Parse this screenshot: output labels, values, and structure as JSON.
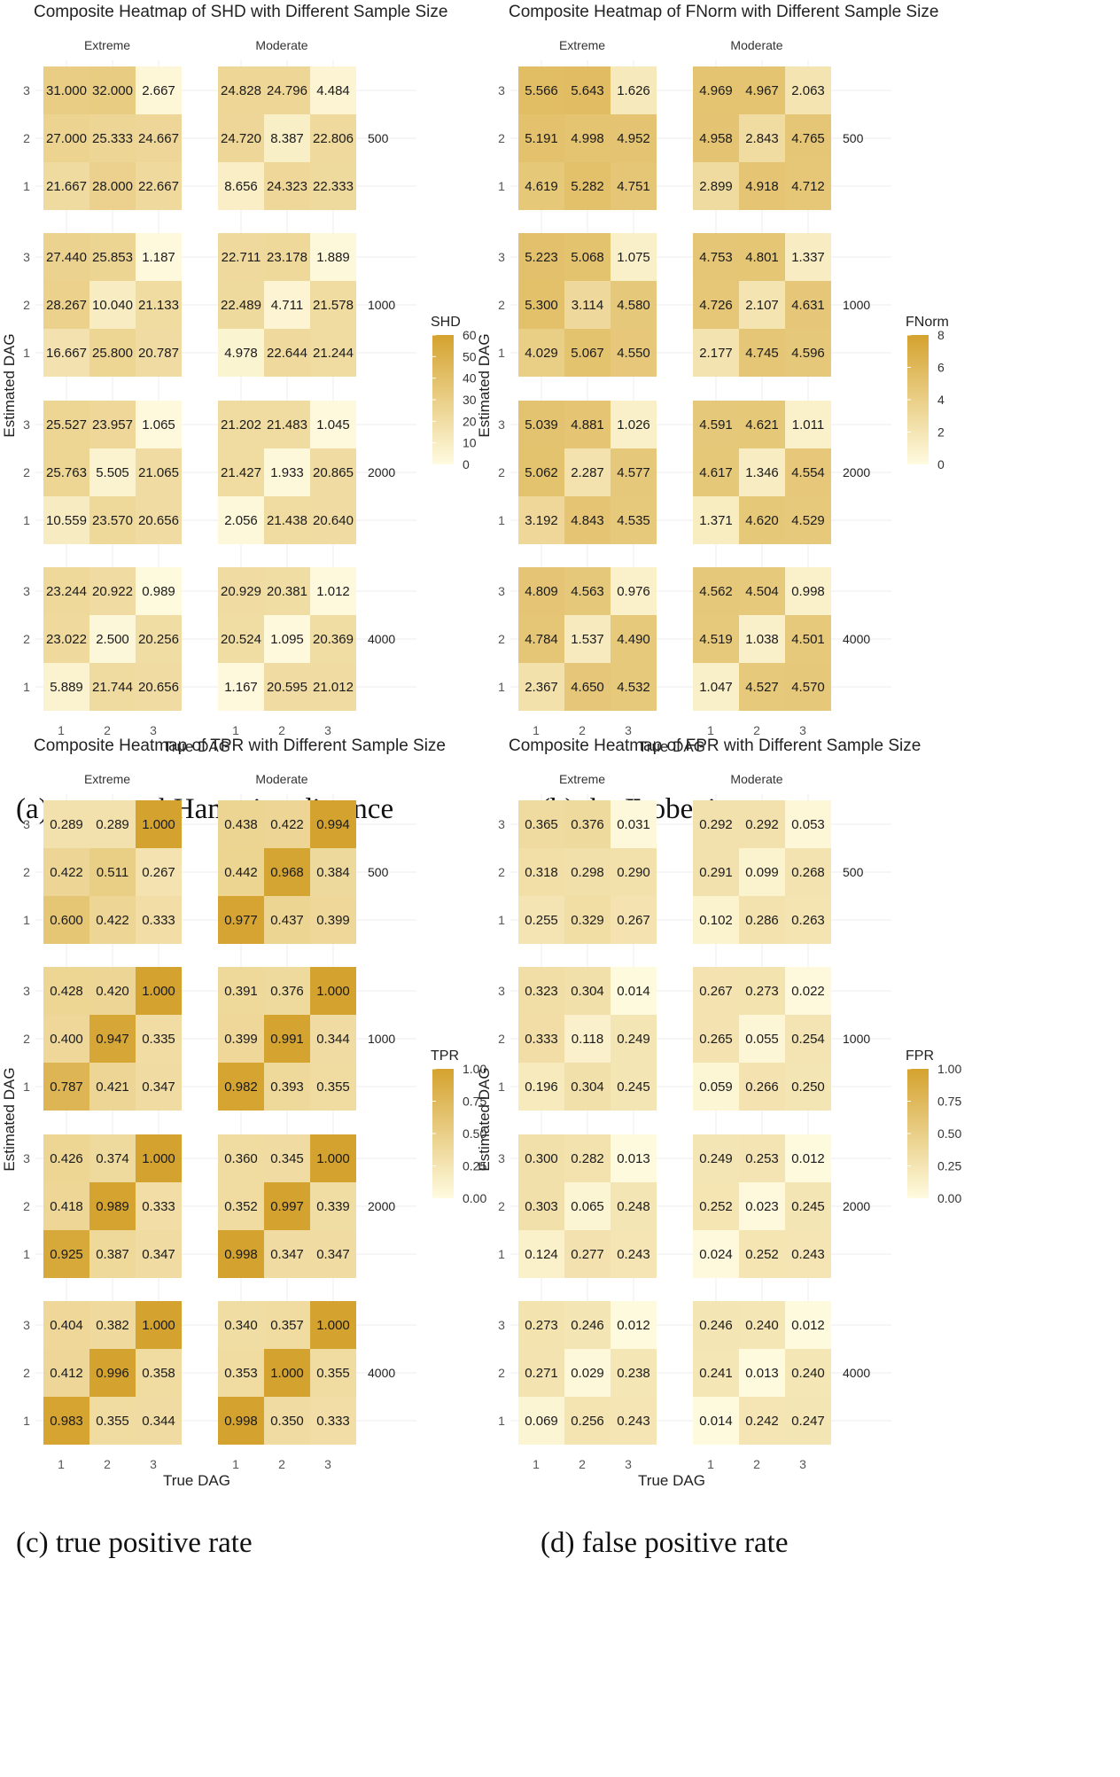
{
  "colors": {
    "low": "#fffbe0",
    "high": "#d4a22e",
    "cell_text": "#1a1a1a",
    "grid": "#ececec"
  },
  "chart_data": [
    {
      "type": "heatmap",
      "title": "Composite Heatmap of SHD with Different Sample Size",
      "xlabel": "True DAG",
      "ylabel": "Estimated DAG",
      "facet_columns": [
        "Extreme",
        "Moderate"
      ],
      "facet_rows": [
        "500",
        "1000",
        "2000",
        "4000"
      ],
      "x_categories": [
        "1",
        "2",
        "3"
      ],
      "y_categories": [
        "1",
        "2",
        "3"
      ],
      "legend": {
        "title": "SHD",
        "limits": [
          0,
          60
        ],
        "ticks": [
          "60",
          "50",
          "40",
          "30",
          "20",
          "10",
          "0"
        ]
      },
      "caption": "(a) structural Hamming distance",
      "values": {
        "500": {
          "Extreme": [
            [
              "31.000",
              "32.000",
              "2.667"
            ],
            [
              "27.000",
              "25.333",
              "24.667"
            ],
            [
              "21.667",
              "28.000",
              "22.667"
            ]
          ],
          "Moderate": [
            [
              "24.828",
              "24.796",
              "4.484"
            ],
            [
              "24.720",
              "8.387",
              "22.806"
            ],
            [
              "8.656",
              "24.323",
              "22.333"
            ]
          ]
        },
        "1000": {
          "Extreme": [
            [
              "27.440",
              "25.853",
              "1.187"
            ],
            [
              "28.267",
              "10.040",
              "21.133"
            ],
            [
              "16.667",
              "25.800",
              "20.787"
            ]
          ],
          "Moderate": [
            [
              "22.711",
              "23.178",
              "1.889"
            ],
            [
              "22.489",
              "4.711",
              "21.578"
            ],
            [
              "4.978",
              "22.644",
              "21.244"
            ]
          ]
        },
        "2000": {
          "Extreme": [
            [
              "25.527",
              "23.957",
              "1.065"
            ],
            [
              "25.763",
              "5.505",
              "21.065"
            ],
            [
              "10.559",
              "23.570",
              "20.656"
            ]
          ],
          "Moderate": [
            [
              "21.202",
              "21.483",
              "1.045"
            ],
            [
              "21.427",
              "1.933",
              "20.865"
            ],
            [
              "2.056",
              "21.438",
              "20.640"
            ]
          ]
        },
        "4000": {
          "Extreme": [
            [
              "23.244",
              "20.922",
              "0.989"
            ],
            [
              "23.022",
              "2.500",
              "20.256"
            ],
            [
              "5.889",
              "21.744",
              "20.656"
            ]
          ],
          "Moderate": [
            [
              "20.929",
              "20.381",
              "1.012"
            ],
            [
              "20.524",
              "1.095",
              "20.369"
            ],
            [
              "1.167",
              "20.595",
              "21.012"
            ]
          ]
        }
      }
    },
    {
      "type": "heatmap",
      "title": "Composite Heatmap of FNorm with Different Sample Size",
      "xlabel": "True DAG",
      "ylabel": "Estimated DAG",
      "facet_columns": [
        "Extreme",
        "Moderate"
      ],
      "facet_rows": [
        "500",
        "1000",
        "2000",
        "4000"
      ],
      "x_categories": [
        "1",
        "2",
        "3"
      ],
      "y_categories": [
        "1",
        "2",
        "3"
      ],
      "legend": {
        "title": "FNorm",
        "limits": [
          0,
          8
        ],
        "ticks": [
          "8",
          "6",
          "4",
          "2",
          "0"
        ]
      },
      "caption": "(b) the Frobenius norm",
      "values": {
        "500": {
          "Extreme": [
            [
              "5.566",
              "5.643",
              "1.626"
            ],
            [
              "5.191",
              "4.998",
              "4.952"
            ],
            [
              "4.619",
              "5.282",
              "4.751"
            ]
          ],
          "Moderate": [
            [
              "4.969",
              "4.967",
              "2.063"
            ],
            [
              "4.958",
              "2.843",
              "4.765"
            ],
            [
              "2.899",
              "4.918",
              "4.712"
            ]
          ]
        },
        "1000": {
          "Extreme": [
            [
              "5.223",
              "5.068",
              "1.075"
            ],
            [
              "5.300",
              "3.114",
              "4.580"
            ],
            [
              "4.029",
              "5.067",
              "4.550"
            ]
          ],
          "Moderate": [
            [
              "4.753",
              "4.801",
              "1.337"
            ],
            [
              "4.726",
              "2.107",
              "4.631"
            ],
            [
              "2.177",
              "4.745",
              "4.596"
            ]
          ]
        },
        "2000": {
          "Extreme": [
            [
              "5.039",
              "4.881",
              "1.026"
            ],
            [
              "5.062",
              "2.287",
              "4.577"
            ],
            [
              "3.192",
              "4.843",
              "4.535"
            ]
          ],
          "Moderate": [
            [
              "4.591",
              "4.621",
              "1.011"
            ],
            [
              "4.617",
              "1.346",
              "4.554"
            ],
            [
              "1.371",
              "4.620",
              "4.529"
            ]
          ]
        },
        "4000": {
          "Extreme": [
            [
              "4.809",
              "4.563",
              "0.976"
            ],
            [
              "4.784",
              "1.537",
              "4.490"
            ],
            [
              "2.367",
              "4.650",
              "4.532"
            ]
          ],
          "Moderate": [
            [
              "4.562",
              "4.504",
              "0.998"
            ],
            [
              "4.519",
              "1.038",
              "4.501"
            ],
            [
              "1.047",
              "4.527",
              "4.570"
            ]
          ]
        }
      }
    },
    {
      "type": "heatmap",
      "title": "Composite Heatmap of TPR with Different Sample Size",
      "xlabel": "True DAG",
      "ylabel": "Estimated DAG",
      "facet_columns": [
        "Extreme",
        "Moderate"
      ],
      "facet_rows": [
        "500",
        "1000",
        "2000",
        "4000"
      ],
      "x_categories": [
        "1",
        "2",
        "3"
      ],
      "y_categories": [
        "1",
        "2",
        "3"
      ],
      "legend": {
        "title": "TPR",
        "limits": [
          0,
          1
        ],
        "ticks": [
          "1.00",
          "0.75",
          "0.50",
          "0.25",
          "0.00"
        ]
      },
      "caption": "(c) true positive rate",
      "values": {
        "500": {
          "Extreme": [
            [
              "0.289",
              "0.289",
              "1.000"
            ],
            [
              "0.422",
              "0.511",
              "0.267"
            ],
            [
              "0.600",
              "0.422",
              "0.333"
            ]
          ],
          "Moderate": [
            [
              "0.438",
              "0.422",
              "0.994"
            ],
            [
              "0.442",
              "0.968",
              "0.384"
            ],
            [
              "0.977",
              "0.437",
              "0.399"
            ]
          ]
        },
        "1000": {
          "Extreme": [
            [
              "0.428",
              "0.420",
              "1.000"
            ],
            [
              "0.400",
              "0.947",
              "0.335"
            ],
            [
              "0.787",
              "0.421",
              "0.347"
            ]
          ],
          "Moderate": [
            [
              "0.391",
              "0.376",
              "1.000"
            ],
            [
              "0.399",
              "0.991",
              "0.344"
            ],
            [
              "0.982",
              "0.393",
              "0.355"
            ]
          ]
        },
        "2000": {
          "Extreme": [
            [
              "0.426",
              "0.374",
              "1.000"
            ],
            [
              "0.418",
              "0.989",
              "0.333"
            ],
            [
              "0.925",
              "0.387",
              "0.347"
            ]
          ],
          "Moderate": [
            [
              "0.360",
              "0.345",
              "1.000"
            ],
            [
              "0.352",
              "0.997",
              "0.339"
            ],
            [
              "0.998",
              "0.347",
              "0.347"
            ]
          ]
        },
        "4000": {
          "Extreme": [
            [
              "0.404",
              "0.382",
              "1.000"
            ],
            [
              "0.412",
              "0.996",
              "0.358"
            ],
            [
              "0.983",
              "0.355",
              "0.344"
            ]
          ],
          "Moderate": [
            [
              "0.340",
              "0.357",
              "1.000"
            ],
            [
              "0.353",
              "1.000",
              "0.355"
            ],
            [
              "0.998",
              "0.350",
              "0.333"
            ]
          ]
        }
      }
    },
    {
      "type": "heatmap",
      "title": "Composite Heatmap of FPR with Different Sample Size",
      "xlabel": "True DAG",
      "ylabel": "Estimated DAG",
      "facet_columns": [
        "Extreme",
        "Moderate"
      ],
      "facet_rows": [
        "500",
        "1000",
        "2000",
        "4000"
      ],
      "x_categories": [
        "1",
        "2",
        "3"
      ],
      "y_categories": [
        "1",
        "2",
        "3"
      ],
      "legend": {
        "title": "FPR",
        "limits": [
          0,
          1
        ],
        "ticks": [
          "1.00",
          "0.75",
          "0.50",
          "0.25",
          "0.00"
        ]
      },
      "caption": "(d) false positive rate",
      "values": {
        "500": {
          "Extreme": [
            [
              "0.365",
              "0.376",
              "0.031"
            ],
            [
              "0.318",
              "0.298",
              "0.290"
            ],
            [
              "0.255",
              "0.329",
              "0.267"
            ]
          ],
          "Moderate": [
            [
              "0.292",
              "0.292",
              "0.053"
            ],
            [
              "0.291",
              "0.099",
              "0.268"
            ],
            [
              "0.102",
              "0.286",
              "0.263"
            ]
          ]
        },
        "1000": {
          "Extreme": [
            [
              "0.323",
              "0.304",
              "0.014"
            ],
            [
              "0.333",
              "0.118",
              "0.249"
            ],
            [
              "0.196",
              "0.304",
              "0.245"
            ]
          ],
          "Moderate": [
            [
              "0.267",
              "0.273",
              "0.022"
            ],
            [
              "0.265",
              "0.055",
              "0.254"
            ],
            [
              "0.059",
              "0.266",
              "0.250"
            ]
          ]
        },
        "2000": {
          "Extreme": [
            [
              "0.300",
              "0.282",
              "0.013"
            ],
            [
              "0.303",
              "0.065",
              "0.248"
            ],
            [
              "0.124",
              "0.277",
              "0.243"
            ]
          ],
          "Moderate": [
            [
              "0.249",
              "0.253",
              "0.012"
            ],
            [
              "0.252",
              "0.023",
              "0.245"
            ],
            [
              "0.024",
              "0.252",
              "0.243"
            ]
          ]
        },
        "4000": {
          "Extreme": [
            [
              "0.273",
              "0.246",
              "0.012"
            ],
            [
              "0.271",
              "0.029",
              "0.238"
            ],
            [
              "0.069",
              "0.256",
              "0.243"
            ]
          ],
          "Moderate": [
            [
              "0.246",
              "0.240",
              "0.012"
            ],
            [
              "0.241",
              "0.013",
              "0.240"
            ],
            [
              "0.014",
              "0.242",
              "0.247"
            ]
          ]
        }
      }
    }
  ]
}
